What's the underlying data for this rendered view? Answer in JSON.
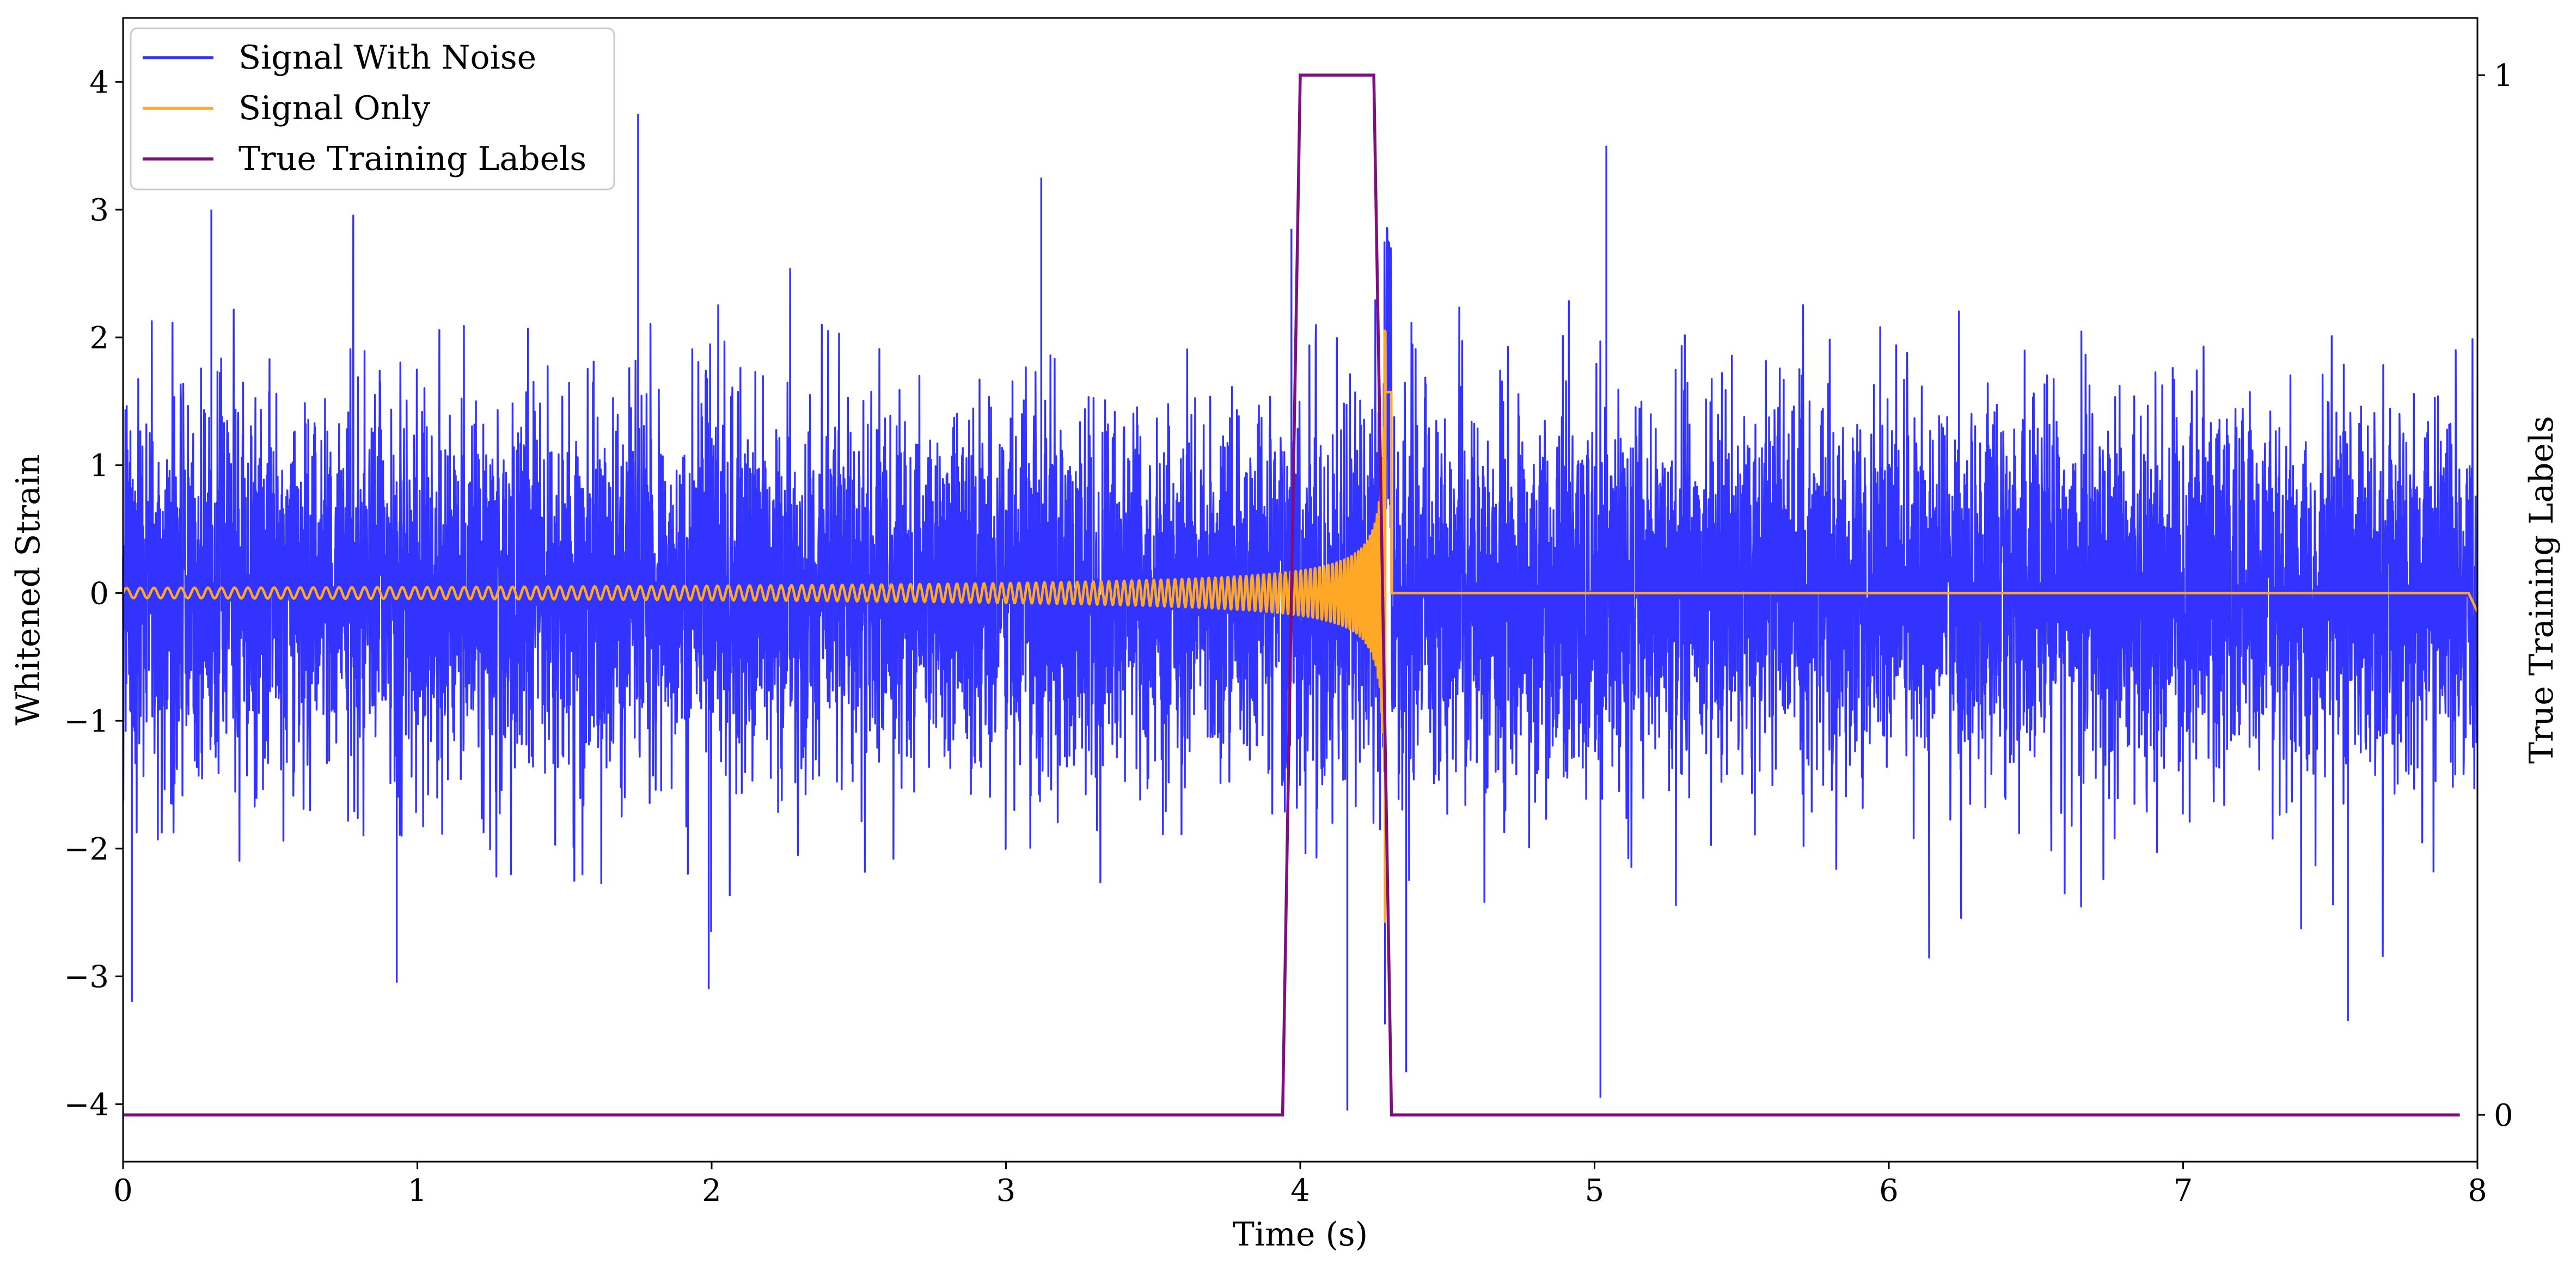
{
  "chart_data": {
    "type": "line",
    "title": "",
    "xlabel": "Time (s)",
    "ylabel": "Whitened Strain",
    "y2label": "True Training Labels",
    "xlim": [
      0,
      8
    ],
    "ylim": [
      -4.45,
      4.5
    ],
    "y2lim": [
      -0.045,
      1.055
    ],
    "x_ticks": [
      0,
      1,
      2,
      3,
      4,
      5,
      6,
      7,
      8
    ],
    "x_tick_labels": [
      "0",
      "1",
      "2",
      "3",
      "4",
      "5",
      "6",
      "7",
      "8"
    ],
    "y_ticks": [
      -4,
      -3,
      -2,
      -1,
      0,
      1,
      2,
      3,
      4
    ],
    "y_tick_labels": [
      "−4",
      "−3",
      "−2",
      "−1",
      "0",
      "1",
      "2",
      "3",
      "4"
    ],
    "y2_ticks": [
      0,
      1
    ],
    "y2_tick_labels": [
      "0",
      "1"
    ],
    "grid": false,
    "legend_position": "top-left",
    "series": [
      {
        "name": "Signal With Noise",
        "color": "#3333ff",
        "axis": "left",
        "approximate": "white noise, std about 0.75, range about -4 to 3.8 over the full 8 s",
        "notable_peaks": [
          {
            "x": 0.03,
            "y": -3.2
          },
          {
            "x": 0.3,
            "y": 3.0
          },
          {
            "x": 0.93,
            "y": -3.05
          },
          {
            "x": 1.75,
            "y": 3.75
          },
          {
            "x": 1.99,
            "y": -3.1
          },
          {
            "x": 3.12,
            "y": 3.25
          },
          {
            "x": 3.97,
            "y": 2.85
          },
          {
            "x": 4.16,
            "y": -4.05
          },
          {
            "x": 4.36,
            "y": -3.75
          },
          {
            "x": 5.02,
            "y": -3.95
          },
          {
            "x": 5.04,
            "y": 3.5
          },
          {
            "x": 7.56,
            "y": -3.35
          }
        ]
      },
      {
        "name": "Signal Only",
        "color": "#ffa726",
        "axis": "left",
        "waveform": "chirp",
        "merger_time": 4.29,
        "early_amplitude": 0.04,
        "peak_amplitude": 2.6,
        "min_value": -2.8,
        "end_time": 4.31,
        "ringdown_dip": {
          "x": 8.0,
          "y": -0.15
        }
      },
      {
        "name": "True Training Labels",
        "color": "#7f0f7f",
        "axis": "right",
        "x": [
          0.0,
          3.94,
          4.0,
          4.25,
          4.31,
          7.94
        ],
        "y": [
          0,
          0,
          1,
          1,
          0,
          0
        ]
      }
    ]
  }
}
